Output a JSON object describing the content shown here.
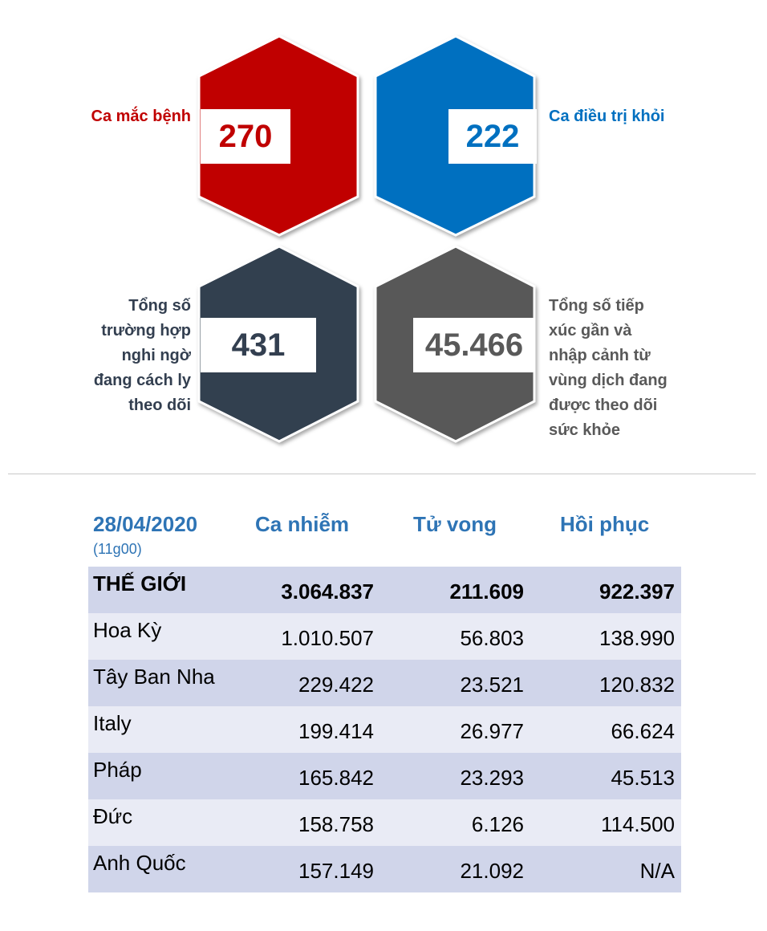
{
  "stats": [
    {
      "label": "Ca mắc bệnh",
      "value": "270",
      "color": "#c00000"
    },
    {
      "label": "Ca điều trị khỏi",
      "value": "222",
      "color": "#0070c0"
    },
    {
      "label_lines": [
        "Tổng số",
        "trường hợp",
        "nghi ngờ",
        "đang cách ly",
        "theo dõi"
      ],
      "value": "431",
      "color": "#333f50"
    },
    {
      "label_lines": [
        "Tổng số tiếp",
        "xúc gần và",
        "nhập cảnh từ",
        "vùng dịch đang",
        "được theo dõi",
        "sức khỏe"
      ],
      "value": "45.466",
      "color": "#595959"
    }
  ],
  "table": {
    "date": "28/04/2020",
    "time": "(11g00)",
    "headers": [
      "Ca nhiễm",
      "Tử vong",
      "Hồi phục"
    ],
    "header_color": "#2e74b5",
    "rows": [
      {
        "name": "THẾ GIỚI",
        "cases": "3.064.837",
        "deaths": "211.609",
        "recovered": "922.397"
      },
      {
        "name": "Hoa Kỳ",
        "cases": "1.010.507",
        "deaths": "56.803",
        "recovered": "138.990"
      },
      {
        "name": "Tây Ban Nha",
        "cases": "229.422",
        "deaths": "23.521",
        "recovered": "120.832"
      },
      {
        "name": "Italy",
        "cases": "199.414",
        "deaths": "26.977",
        "recovered": "66.624"
      },
      {
        "name": "Pháp",
        "cases": "165.842",
        "deaths": "23.293",
        "recovered": "45.513"
      },
      {
        "name": "Đức",
        "cases": "158.758",
        "deaths": "6.126",
        "recovered": "114.500"
      },
      {
        "name": "Anh Quốc",
        "cases": "157.149",
        "deaths": "21.092",
        "recovered": "N/A"
      }
    ]
  }
}
